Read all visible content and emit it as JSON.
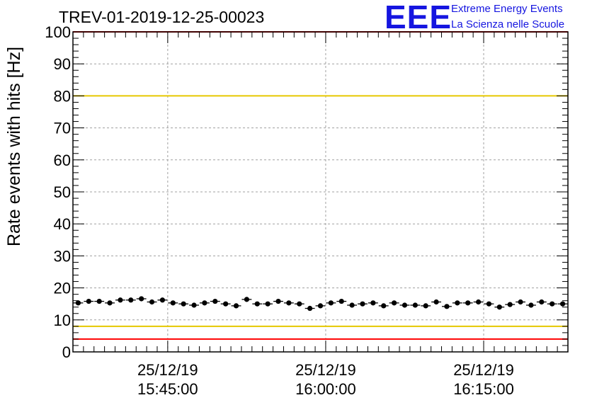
{
  "title": "TREV-01-2019-12-25-00023",
  "logo": {
    "acronym": "EEE",
    "line1": "Extreme Energy Events",
    "line2": "La Scienza nelle Scuole"
  },
  "colors": {
    "red_line": "#ff0000",
    "yellow_line": "#e6c800",
    "grid": "#a0a0a0",
    "marker": "#000000",
    "logo": "#1515e0"
  },
  "chart_data": {
    "type": "scatter",
    "title": "TREV-01-2019-12-25-00023",
    "ylabel": "Rate events with hits [Hz]",
    "xlabel": "",
    "ylim": [
      0,
      100
    ],
    "xlim": [
      "25/12/19 15:36:00",
      "25/12/19 16:23:00"
    ],
    "y_ticks": [
      0,
      10,
      20,
      30,
      40,
      50,
      60,
      70,
      80,
      90,
      100
    ],
    "x_ticks": [
      {
        "time": "25/12/19 15:45:00",
        "date_label": "25/12/19",
        "time_label": "15:45:00"
      },
      {
        "time": "25/12/19 16:00:00",
        "date_label": "25/12/19",
        "time_label": "16:00:00"
      },
      {
        "time": "25/12/19 16:15:00",
        "date_label": "25/12/19",
        "time_label": "16:15:00"
      }
    ],
    "grid": true,
    "reference_lines": [
      {
        "y": 100,
        "color": "red"
      },
      {
        "y": 80,
        "color": "yellow"
      },
      {
        "y": 8,
        "color": "yellow"
      },
      {
        "y": 4,
        "color": "red"
      }
    ],
    "series": [
      {
        "x": [
          "15:36:30",
          "15:37:30",
          "15:38:30",
          "15:39:30",
          "15:40:30",
          "15:41:30",
          "15:42:30",
          "15:43:30",
          "15:44:30",
          "15:45:30",
          "15:46:30",
          "15:47:30",
          "15:48:30",
          "15:49:30",
          "15:50:30",
          "15:51:30",
          "15:52:30",
          "15:53:30",
          "15:54:30",
          "15:55:30",
          "15:56:30",
          "15:57:30",
          "15:58:30",
          "15:59:30",
          "16:00:30",
          "16:01:30",
          "16:02:30",
          "16:03:30",
          "16:04:30",
          "16:05:30",
          "16:06:30",
          "16:07:30",
          "16:08:30",
          "16:09:30",
          "16:10:30",
          "16:11:30",
          "16:12:30",
          "16:13:30",
          "16:14:30",
          "16:15:30",
          "16:16:30",
          "16:17:30",
          "16:18:30",
          "16:19:30",
          "16:20:30",
          "16:21:30",
          "16:22:30"
        ],
        "values": [
          15.3,
          15.8,
          15.8,
          15.3,
          16.2,
          16.2,
          16.6,
          15.6,
          16.2,
          15.3,
          15.0,
          14.6,
          15.3,
          15.8,
          15.0,
          14.4,
          16.4,
          15.0,
          15.0,
          15.8,
          15.3,
          15.0,
          13.6,
          14.4,
          15.3,
          15.8,
          14.6,
          15.0,
          15.3,
          14.4,
          15.3,
          14.6,
          14.6,
          14.4,
          15.6,
          14.2,
          15.3,
          15.3,
          15.6,
          15.0,
          14.0,
          14.8,
          15.6,
          14.6,
          15.6,
          15.0,
          15.0
        ]
      }
    ]
  }
}
